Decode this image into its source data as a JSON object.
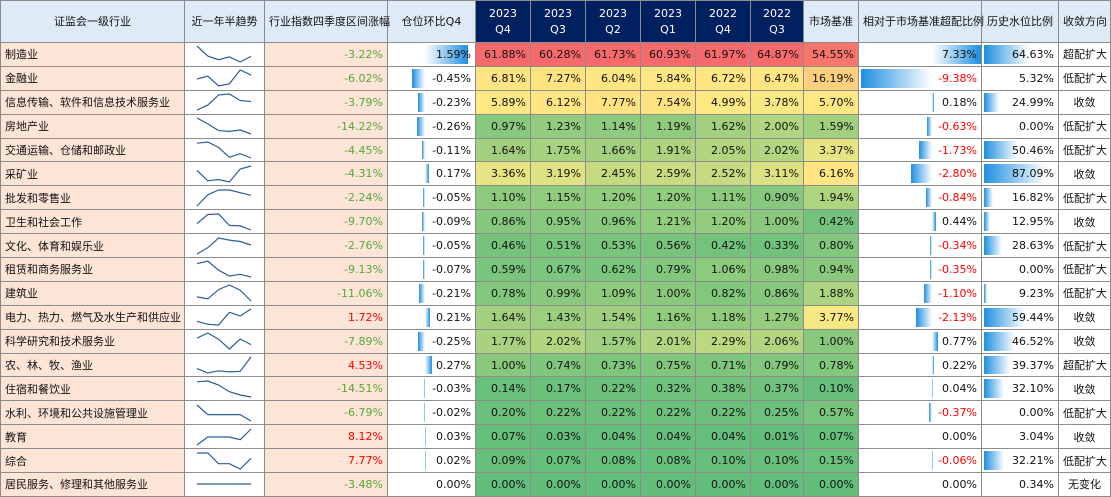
{
  "chart_data": {
    "type": "table",
    "headers": [
      "证监会一级行业",
      "近一年半趋势",
      "行业指数四季度区间涨幅",
      "仓位环比Q4",
      "2023 Q4",
      "2023 Q3",
      "2023 Q2",
      "2023 Q1",
      "2022 Q4",
      "2022 Q3",
      "市场基准",
      "相对于市场基准超配比例",
      "历史水位比例",
      "收敛方向"
    ],
    "period_headers": [
      [
        "2023",
        "Q4"
      ],
      [
        "2023",
        "Q3"
      ],
      [
        "2023",
        "Q2"
      ],
      [
        "2023",
        "Q1"
      ],
      [
        "2022",
        "Q4"
      ],
      [
        "2022",
        "Q3"
      ]
    ],
    "rows": [
      {
        "industry": "制造业",
        "change": "-3.22%",
        "qoq": "1.59%",
        "q": [
          "61.88%",
          "60.28%",
          "61.73%",
          "60.93%",
          "61.97%",
          "64.87%"
        ],
        "bench": "54.55%",
        "over": "7.33%",
        "hist": "64.63%",
        "dir": "超配扩大"
      },
      {
        "industry": "金融业",
        "change": "-6.02%",
        "qoq": "-0.45%",
        "q": [
          "6.81%",
          "7.27%",
          "6.04%",
          "5.84%",
          "6.72%",
          "6.47%"
        ],
        "bench": "16.19%",
        "over": "-9.38%",
        "hist": "5.32%",
        "dir": "低配扩大"
      },
      {
        "industry": "信息传输、软件和信息技术服务业",
        "change": "-3.79%",
        "qoq": "-0.23%",
        "q": [
          "5.89%",
          "6.12%",
          "7.77%",
          "7.54%",
          "4.99%",
          "3.78%"
        ],
        "bench": "5.70%",
        "over": "0.18%",
        "hist": "24.99%",
        "dir": "收敛"
      },
      {
        "industry": "房地产业",
        "change": "-14.22%",
        "qoq": "-0.26%",
        "q": [
          "0.97%",
          "1.23%",
          "1.14%",
          "1.19%",
          "1.62%",
          "2.00%"
        ],
        "bench": "1.59%",
        "over": "-0.63%",
        "hist": "0.00%",
        "dir": "低配扩大"
      },
      {
        "industry": "交通运输、仓储和邮政业",
        "change": "-4.45%",
        "qoq": "-0.11%",
        "q": [
          "1.64%",
          "1.75%",
          "1.66%",
          "1.91%",
          "2.05%",
          "2.02%"
        ],
        "bench": "3.37%",
        "over": "-1.73%",
        "hist": "50.46%",
        "dir": "低配扩大"
      },
      {
        "industry": "采矿业",
        "change": "-4.31%",
        "qoq": "0.17%",
        "q": [
          "3.36%",
          "3.19%",
          "2.45%",
          "2.59%",
          "2.52%",
          "3.11%"
        ],
        "bench": "6.16%",
        "over": "-2.80%",
        "hist": "87.09%",
        "dir": "收敛"
      },
      {
        "industry": "批发和零售业",
        "change": "-2.24%",
        "qoq": "-0.05%",
        "q": [
          "1.10%",
          "1.15%",
          "1.20%",
          "1.20%",
          "1.11%",
          "0.90%"
        ],
        "bench": "1.94%",
        "over": "-0.84%",
        "hist": "16.82%",
        "dir": "低配扩大"
      },
      {
        "industry": "卫生和社会工作",
        "change": "-9.70%",
        "qoq": "-0.09%",
        "q": [
          "0.86%",
          "0.95%",
          "0.96%",
          "1.21%",
          "1.20%",
          "1.00%"
        ],
        "bench": "0.42%",
        "over": "0.44%",
        "hist": "12.95%",
        "dir": "收敛"
      },
      {
        "industry": "文化、体育和娱乐业",
        "change": "-2.76%",
        "qoq": "-0.05%",
        "q": [
          "0.46%",
          "0.51%",
          "0.53%",
          "0.56%",
          "0.42%",
          "0.33%"
        ],
        "bench": "0.80%",
        "over": "-0.34%",
        "hist": "28.63%",
        "dir": "低配扩大"
      },
      {
        "industry": "租赁和商务服务业",
        "change": "-9.13%",
        "qoq": "-0.07%",
        "q": [
          "0.59%",
          "0.67%",
          "0.62%",
          "0.79%",
          "1.06%",
          "0.98%"
        ],
        "bench": "0.94%",
        "over": "-0.35%",
        "hist": "0.00%",
        "dir": "低配扩大"
      },
      {
        "industry": "建筑业",
        "change": "-11.06%",
        "qoq": "-0.21%",
        "q": [
          "0.78%",
          "0.99%",
          "1.09%",
          "1.00%",
          "0.82%",
          "0.86%"
        ],
        "bench": "1.88%",
        "over": "-1.10%",
        "hist": "9.23%",
        "dir": "低配扩大"
      },
      {
        "industry": "电力、热力、燃气及水生产和供应业",
        "change": "1.72%",
        "qoq": "0.21%",
        "q": [
          "1.64%",
          "1.43%",
          "1.54%",
          "1.16%",
          "1.18%",
          "1.27%"
        ],
        "bench": "3.77%",
        "over": "-2.13%",
        "hist": "59.44%",
        "dir": "收敛"
      },
      {
        "industry": "科学研究和技术服务业",
        "change": "-7.89%",
        "qoq": "-0.25%",
        "q": [
          "1.77%",
          "2.02%",
          "1.57%",
          "2.01%",
          "2.29%",
          "2.06%"
        ],
        "bench": "1.00%",
        "over": "0.77%",
        "hist": "46.52%",
        "dir": "收敛"
      },
      {
        "industry": "农、林、牧、渔业",
        "change": "4.53%",
        "qoq": "0.27%",
        "q": [
          "1.00%",
          "0.74%",
          "0.73%",
          "0.75%",
          "0.71%",
          "0.79%"
        ],
        "bench": "0.78%",
        "over": "0.22%",
        "hist": "39.37%",
        "dir": "超配扩大"
      },
      {
        "industry": "住宿和餐饮业",
        "change": "-14.51%",
        "qoq": "-0.03%",
        "q": [
          "0.14%",
          "0.17%",
          "0.22%",
          "0.32%",
          "0.38%",
          "0.37%"
        ],
        "bench": "0.10%",
        "over": "0.04%",
        "hist": "32.10%",
        "dir": "收敛"
      },
      {
        "industry": "水利、环境和公共设施管理业",
        "change": "-6.79%",
        "qoq": "-0.02%",
        "q": [
          "0.20%",
          "0.22%",
          "0.22%",
          "0.22%",
          "0.22%",
          "0.25%"
        ],
        "bench": "0.57%",
        "over": "-0.37%",
        "hist": "0.00%",
        "dir": "低配扩大"
      },
      {
        "industry": "教育",
        "change": "8.12%",
        "qoq": "0.03%",
        "q": [
          "0.07%",
          "0.03%",
          "0.04%",
          "0.04%",
          "0.04%",
          "0.01%"
        ],
        "bench": "0.07%",
        "over": "0.00%",
        "hist": "3.04%",
        "dir": "收敛"
      },
      {
        "industry": "综合",
        "change": "7.77%",
        "qoq": "0.02%",
        "q": [
          "0.09%",
          "0.07%",
          "0.08%",
          "0.08%",
          "0.10%",
          "0.10%"
        ],
        "bench": "0.15%",
        "over": "-0.06%",
        "hist": "32.21%",
        "dir": "低配扩大"
      },
      {
        "industry": "居民服务、修理和其他服务业",
        "change": "-3.48%",
        "qoq": "0.00%",
        "q": [
          "0.00%",
          "0.00%",
          "0.00%",
          "0.00%",
          "0.00%",
          "0.00%"
        ],
        "bench": "0.00%",
        "over": "0.00%",
        "hist": "0.34%",
        "dir": "无变化"
      }
    ],
    "bar_max": {
      "qoq": 1.59,
      "over": 9.38,
      "hist": 100
    },
    "colors": {
      "header_bg": "#deebf7",
      "period_header_bg": "#002060",
      "industry_bg": "#fce4d6",
      "positive_text": "#ff0000",
      "negative_text": "#57a639",
      "databar": "#1f8fe0",
      "sparkline": "#2e5c9a",
      "heatmap_high": "#f8696b",
      "heatmap_mid": "#ffeb84",
      "heatmap_low": "#63be7b"
    }
  }
}
